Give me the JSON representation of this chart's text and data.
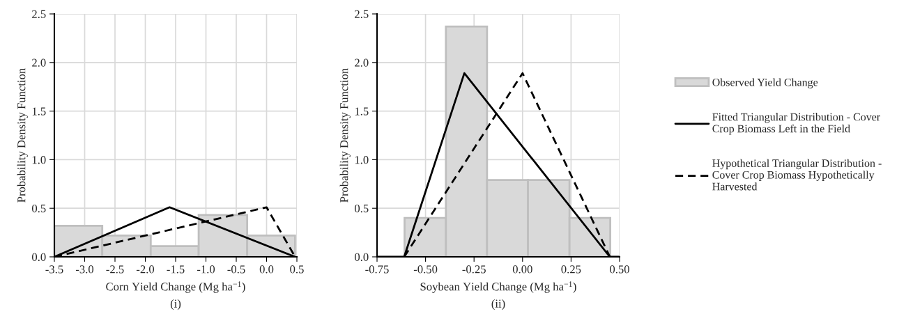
{
  "chart_data": [
    {
      "type": "histogram",
      "xlabel": "Corn Yield Change (Mg ha$^{−1}$)",
      "ylabel": "Probability Density Function",
      "annotations": [
        "(i)"
      ],
      "series": [
        {
          "color": "#d9d9d9",
          "bins": [
            -3.5,
            -2.71,
            -1.91,
            -1.12,
            -0.32,
            0.47
          ],
          "values": [
            0.32,
            0.22,
            0.11,
            0.43,
            0.22
          ]
        },
        {
          "type": "line",
          "color": "#000000",
          "line_style": "solid",
          "x": [
            -3.5,
            -1.6,
            0.47
          ],
          "values": [
            0,
            0.51,
            0
          ]
        },
        {
          "type": "line",
          "color": "#000000",
          "line_style": "dashed",
          "x": [
            -3.5,
            0,
            0.47
          ],
          "values": [
            0,
            0.51,
            0
          ]
        }
      ],
      "xlim": [
        -3.5,
        0.5
      ],
      "xticks": [
        -3.5,
        {
          "value": -3,
          "label": "-3.0"
        },
        -2.5,
        {
          "value": -2,
          "label": "-2.0"
        },
        -1.5,
        {
          "value": -1,
          "label": "-1.0"
        },
        -0.5,
        {
          "value": 0,
          "label": "0.0"
        },
        0.5
      ],
      "ylim": [
        0,
        2.5
      ],
      "yticks": [
        {
          "value": 0,
          "label": "0.0"
        },
        0.5,
        {
          "value": 1,
          "label": "1.0"
        },
        1.5,
        {
          "value": 2,
          "label": "2.0"
        },
        2.5
      ],
      "grid": true
    },
    {
      "type": "histogram",
      "xlabel": "Soybean Yield Change (Mg ha$^{−1}$)",
      "ylabel": "Probability Density Function",
      "annotations": [
        "(ii)"
      ],
      "series": [
        {
          "name": "Observed Yield Change",
          "color": "#d9d9d9",
          "bins": [
            -0.608,
            -0.395,
            -0.183,
            0.028,
            0.242,
            0.452
          ],
          "values": [
            0.4,
            2.37,
            0.79,
            0.79,
            0.4
          ]
        },
        {
          "type": "line",
          "name": "Fitted Triangular Distribution - Cover\nCrop Biomass Left in the Field",
          "color": "#000000",
          "line_style": "solid",
          "x": [
            -0.75,
            -0.61,
            -0.3,
            0.45,
            0.5
          ],
          "values": [
            0,
            0,
            1.89,
            0,
            0
          ]
        },
        {
          "type": "line",
          "name": "Hypothetical Triangular Distribution -\nCover Crop Biomass Hypothetically\nHarvested",
          "color": "#000000",
          "line_style": "dashed",
          "x": [
            -0.61,
            0,
            0.45
          ],
          "values": [
            0,
            1.89,
            0
          ]
        }
      ],
      "xlim": [
        -0.75,
        0.5
      ],
      "xticks": [
        {
          "value": -0.75,
          "label": "-0.75"
        },
        {
          "value": -0.5,
          "label": "-0.50"
        },
        {
          "value": -0.25,
          "label": "-0.25"
        },
        {
          "value": 0,
          "label": "0.00"
        },
        {
          "value": 0.25,
          "label": "0.25"
        },
        {
          "value": 0.5,
          "label": "0.50"
        }
      ],
      "ylim": [
        0,
        2.5
      ],
      "yticks": [
        {
          "value": 0,
          "label": "0.0"
        },
        0.5,
        {
          "value": 1,
          "label": "1.0"
        },
        1.5,
        {
          "value": 2,
          "label": "2.0"
        },
        2.5
      ],
      "grid": true,
      "legend": "right"
    }
  ]
}
